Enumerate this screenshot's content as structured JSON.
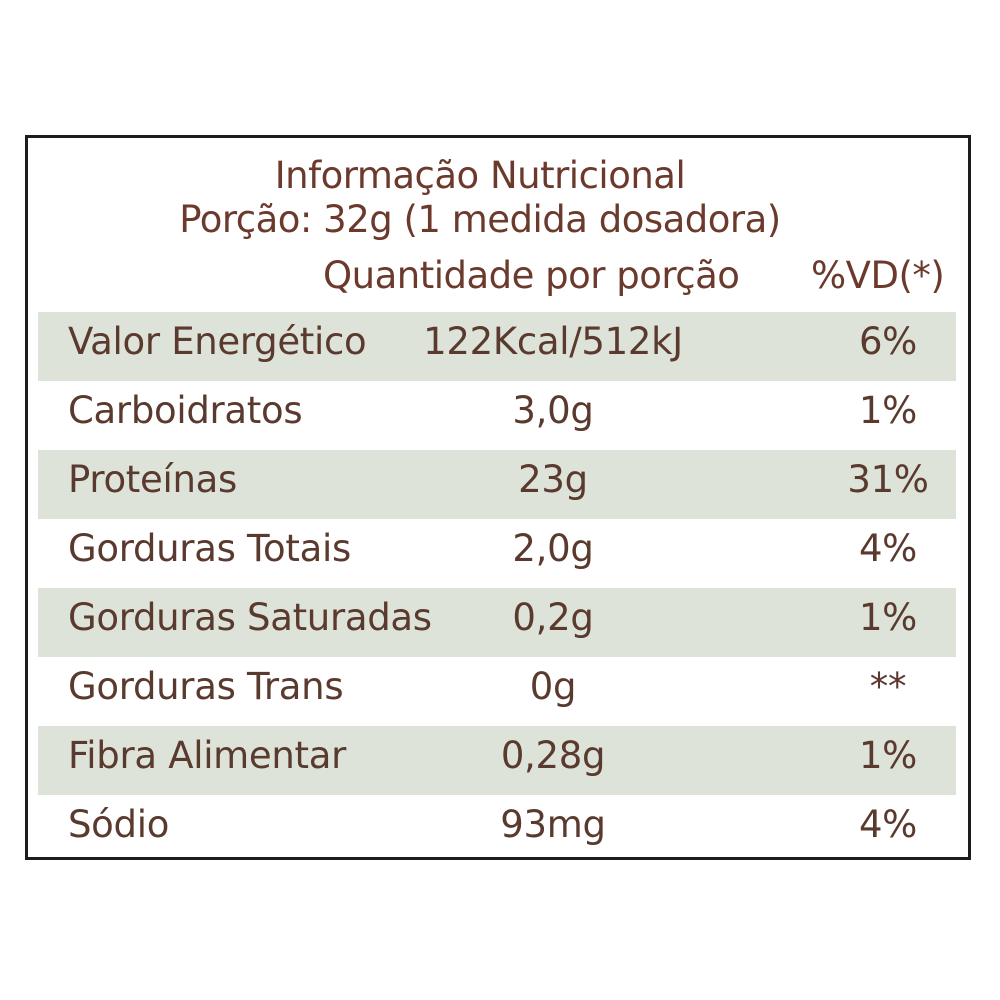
{
  "label": {
    "title": "Informação Nutricional",
    "serving": "Porção: 32g (1 medida dosadora)",
    "header_quantity": "Quantidade por porção",
    "header_dv": "%VD(*)",
    "rows": [
      {
        "name": "Valor Energético",
        "quantity": "122Kcal/512kJ",
        "dv": "6%"
      },
      {
        "name": "Carboidratos",
        "quantity": "3,0g",
        "dv": "1%"
      },
      {
        "name": "Proteínas",
        "quantity": "23g",
        "dv": "31%"
      },
      {
        "name": "Gorduras Totais",
        "quantity": "2,0g",
        "dv": "4%"
      },
      {
        "name": "Gorduras Saturadas",
        "quantity": "0,2g",
        "dv": "1%"
      },
      {
        "name": "Gorduras Trans",
        "quantity": "0g",
        "dv": "**"
      },
      {
        "name": "Fibra Alimentar",
        "quantity": "0,28g",
        "dv": "1%"
      },
      {
        "name": "Sódio",
        "quantity": "93mg",
        "dv": "4%"
      }
    ]
  },
  "colors": {
    "text": "#6b3a2c",
    "row_shade": "#dde3d8",
    "border": "#1c1c1c"
  }
}
